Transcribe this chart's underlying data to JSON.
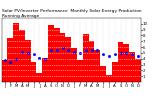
{
  "title": "Solar PV/Inverter Performance  Monthly Solar Energy Production Running Average",
  "bar_values": [
    3.8,
    7.5,
    10.2,
    9.0,
    7.2,
    3.5,
    1.6,
    4.2,
    9.8,
    9.2,
    8.5,
    7.8,
    5.8,
    3.8,
    8.2,
    7.0,
    5.5,
    2.8,
    1.2,
    3.5,
    6.8,
    6.5,
    5.2,
    4.0
  ],
  "avg_values": [
    3.8,
    3.5,
    4.0,
    5.2,
    5.0,
    4.8,
    4.2,
    4.0,
    5.5,
    5.5,
    5.8,
    5.5,
    5.2,
    5.0,
    5.5,
    5.5,
    5.5,
    4.8,
    4.5,
    4.8,
    5.0,
    5.0,
    4.8,
    4.5
  ],
  "bar_color": "#ff0000",
  "avg_color": "#0000ff",
  "bg_color": "#ffffff",
  "plot_bg": "#ffffff",
  "grid_color": "#888888",
  "ylim": [
    0,
    11
  ],
  "ytick_vals": [
    1,
    2,
    3,
    4,
    5,
    6,
    7,
    8,
    9,
    10
  ],
  "title_fontsize": 3.2,
  "tick_fontsize": 2.8,
  "xlabel_labels": [
    "J",
    "F",
    "M",
    "A",
    "M",
    "J",
    "J",
    "A",
    "S",
    "O",
    "N",
    "D",
    "J",
    "F",
    "M",
    "A",
    "M",
    "J",
    "J",
    "A",
    "S",
    "O",
    "N",
    "D"
  ],
  "n_bars": 24
}
